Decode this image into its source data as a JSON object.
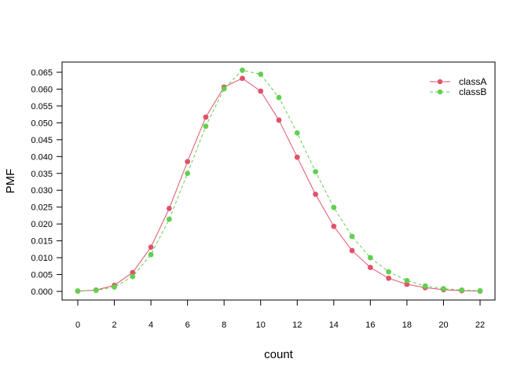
{
  "chart_data": {
    "type": "line",
    "title": "",
    "xlabel": "count",
    "ylabel": "PMF",
    "xlim": [
      0,
      22
    ],
    "ylim": [
      0,
      0.065
    ],
    "x_ticks": [
      0,
      2,
      4,
      6,
      8,
      10,
      12,
      14,
      16,
      18,
      20,
      22
    ],
    "x_tick_labels": [
      "0",
      "2",
      "4",
      "6",
      "8",
      "10",
      "12",
      "14",
      "16",
      "18",
      "20",
      "22"
    ],
    "y_ticks": [
      0,
      0.005,
      0.01,
      0.015,
      0.02,
      0.025,
      0.03,
      0.035,
      0.04,
      0.045,
      0.05,
      0.055,
      0.06,
      0.065
    ],
    "y_tick_labels": [
      "0.000",
      "0.005",
      "0.010",
      "0.015",
      "0.020",
      "0.025",
      "0.030",
      "0.035",
      "0.040",
      "0.045",
      "0.050",
      "0.055",
      "0.060",
      "0.065"
    ],
    "grid": false,
    "legend_position": "top-right",
    "x": [
      0,
      1,
      2,
      3,
      4,
      5,
      6,
      7,
      8,
      9,
      10,
      11,
      12,
      13,
      14,
      15,
      16,
      17,
      18,
      19,
      20,
      21,
      22
    ],
    "series": [
      {
        "name": "classA",
        "color": "#DF536B",
        "line_style": "solid",
        "values": [
          0.0001,
          0.0004,
          0.0018,
          0.0056,
          0.0131,
          0.0246,
          0.0385,
          0.0517,
          0.0606,
          0.0632,
          0.0594,
          0.0508,
          0.0398,
          0.0288,
          0.0193,
          0.0121,
          0.0071,
          0.0039,
          0.0021,
          0.0011,
          0.0005,
          0.0002,
          0.0001
        ]
      },
      {
        "name": "classB",
        "color": "#61D04F",
        "line_style": "dashed",
        "values": [
          0.0001,
          0.0003,
          0.0013,
          0.0044,
          0.0109,
          0.0214,
          0.035,
          0.049,
          0.0601,
          0.0656,
          0.0644,
          0.0575,
          0.047,
          0.0355,
          0.0249,
          0.0163,
          0.01,
          0.0058,
          0.0032,
          0.0016,
          0.0008,
          0.0004,
          0.0002
        ]
      }
    ]
  }
}
